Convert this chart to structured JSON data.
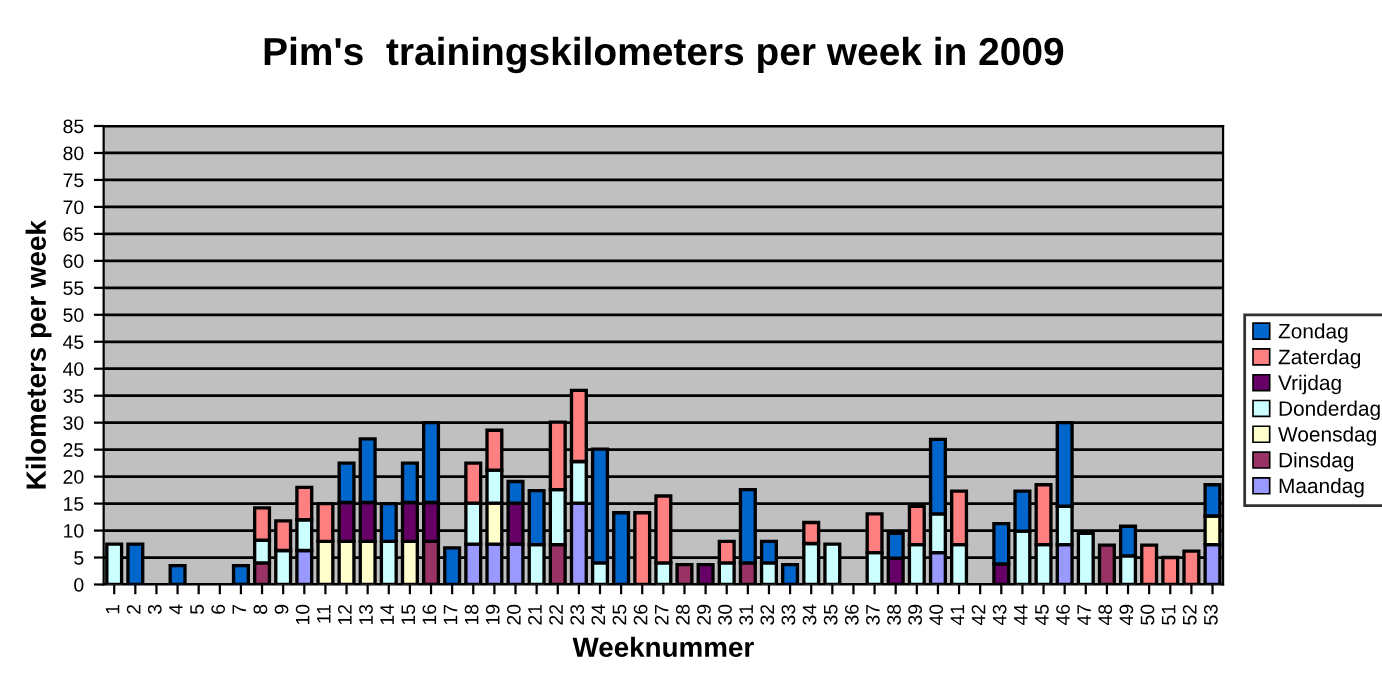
{
  "chart_data": {
    "type": "bar",
    "stacked": true,
    "title": "Pim's  trainingskilometers per week in 2009",
    "xlabel": "Weeknummer",
    "ylabel": "Kilometers per week",
    "categories": [
      "1",
      "2",
      "3",
      "4",
      "5",
      "6",
      "7",
      "8",
      "9",
      "10",
      "11",
      "12",
      "13",
      "14",
      "15",
      "16",
      "17",
      "18",
      "19",
      "20",
      "21",
      "22",
      "23",
      "24",
      "25",
      "26",
      "27",
      "28",
      "29",
      "30",
      "31",
      "32",
      "33",
      "34",
      "35",
      "36",
      "37",
      "38",
      "39",
      "40",
      "41",
      "42",
      "43",
      "44",
      "45",
      "46",
      "47",
      "48",
      "49",
      "50",
      "51",
      "52",
      "53"
    ],
    "ylim": [
      0,
      85
    ],
    "yticks": [
      0,
      5,
      10,
      15,
      20,
      25,
      30,
      35,
      40,
      45,
      50,
      55,
      60,
      65,
      70,
      75,
      80,
      85
    ],
    "grid": "y",
    "legend": "right",
    "series": [
      {
        "name": "Maandag",
        "color": "#9999ff",
        "values": [
          null,
          null,
          null,
          null,
          null,
          null,
          null,
          null,
          null,
          6.3,
          null,
          null,
          null,
          null,
          null,
          null,
          null,
          7.5,
          7.5,
          7.5,
          null,
          null,
          15.1,
          null,
          null,
          null,
          null,
          null,
          null,
          null,
          null,
          null,
          null,
          null,
          null,
          null,
          null,
          null,
          null,
          5.9,
          null,
          null,
          null,
          null,
          null,
          7.4,
          null,
          null,
          null,
          null,
          null,
          null,
          7.4
        ]
      },
      {
        "name": "Dinsdag",
        "color": "#993366",
        "values": [
          null,
          null,
          null,
          null,
          null,
          null,
          null,
          4,
          null,
          null,
          null,
          null,
          null,
          null,
          null,
          8,
          null,
          null,
          null,
          null,
          null,
          7.4,
          null,
          null,
          null,
          null,
          null,
          3.7,
          null,
          null,
          4,
          null,
          null,
          null,
          null,
          null,
          null,
          null,
          null,
          null,
          null,
          null,
          null,
          null,
          null,
          null,
          null,
          7.3,
          null,
          null,
          null,
          null,
          null
        ]
      },
      {
        "name": "Woensdag",
        "color": "#ffffcc",
        "values": [
          null,
          null,
          null,
          null,
          null,
          null,
          null,
          null,
          null,
          null,
          8,
          8,
          8,
          null,
          8,
          null,
          null,
          null,
          7.6,
          null,
          null,
          null,
          null,
          null,
          null,
          null,
          null,
          null,
          null,
          null,
          null,
          null,
          null,
          null,
          null,
          null,
          null,
          null,
          null,
          null,
          null,
          null,
          null,
          null,
          null,
          null,
          null,
          null,
          null,
          null,
          null,
          null,
          5.3
        ]
      },
      {
        "name": "Donderdag",
        "color": "#ccffff",
        "values": [
          7.5,
          null,
          null,
          null,
          null,
          null,
          null,
          4.2,
          6.3,
          5.7,
          null,
          null,
          null,
          8,
          null,
          null,
          null,
          7.6,
          6.1,
          null,
          7.4,
          10.2,
          7.7,
          4,
          null,
          null,
          4,
          null,
          null,
          4,
          null,
          4,
          null,
          7.6,
          7.5,
          null,
          5.9,
          null,
          7.4,
          7.2,
          7.4,
          null,
          null,
          9.9,
          7.4,
          7.1,
          9.5,
          null,
          5.3,
          null,
          null,
          null,
          null
        ]
      },
      {
        "name": "Vrijdag",
        "color": "#660066",
        "values": [
          null,
          null,
          null,
          null,
          null,
          null,
          null,
          null,
          null,
          null,
          null,
          7.2,
          7.2,
          null,
          7.2,
          7.2,
          null,
          null,
          null,
          7.6,
          null,
          null,
          null,
          null,
          null,
          null,
          null,
          null,
          3.7,
          null,
          null,
          null,
          null,
          null,
          null,
          null,
          null,
          4.9,
          null,
          null,
          null,
          null,
          3.8,
          null,
          null,
          null,
          null,
          null,
          null,
          null,
          null,
          null,
          null
        ]
      },
      {
        "name": "Zaterdag",
        "color": "#ff8080",
        "values": [
          null,
          null,
          null,
          null,
          null,
          null,
          null,
          6,
          5.5,
          6,
          7,
          null,
          null,
          null,
          null,
          null,
          null,
          7.4,
          7.4,
          null,
          null,
          12.5,
          13.2,
          null,
          null,
          13.3,
          12.4,
          null,
          null,
          4,
          null,
          null,
          null,
          3.9,
          null,
          null,
          7.2,
          null,
          7.1,
          null,
          9.9,
          null,
          null,
          null,
          11.1,
          null,
          null,
          null,
          null,
          7.3,
          5,
          6.2,
          null
        ]
      },
      {
        "name": "Zondag",
        "color": "#0066cc",
        "values": [
          null,
          7.5,
          null,
          3.5,
          null,
          null,
          3.5,
          null,
          null,
          null,
          null,
          7.3,
          11.8,
          7,
          7.3,
          14.8,
          6.8,
          null,
          null,
          4,
          10,
          null,
          null,
          21.1,
          13.3,
          null,
          null,
          null,
          null,
          null,
          13.6,
          4,
          3.7,
          null,
          null,
          null,
          null,
          4.6,
          null,
          13.8,
          null,
          null,
          7.5,
          7.4,
          null,
          15.5,
          null,
          null,
          5.5,
          null,
          null,
          null,
          5.8
        ]
      }
    ]
  }
}
